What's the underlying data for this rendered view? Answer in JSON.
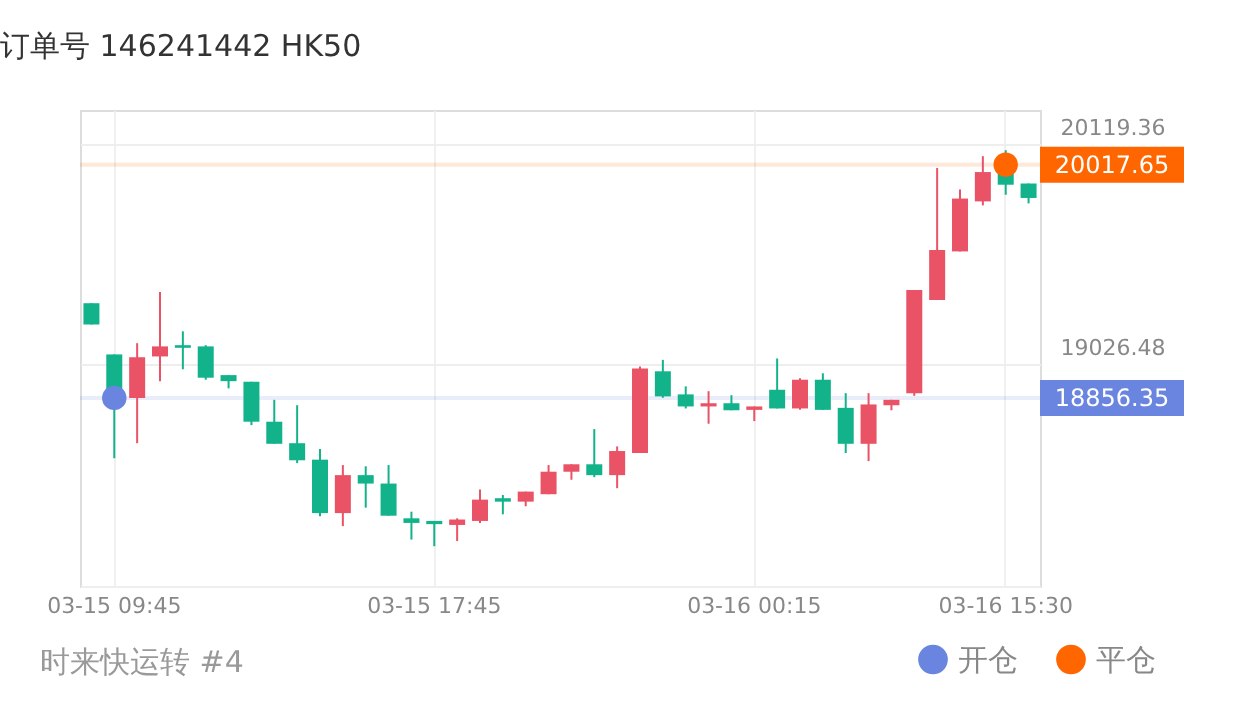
{
  "chart_data": {
    "type": "candlestick",
    "title": "订单号 146241442    HK50",
    "annotations": [
      "时来快运转 #4"
    ],
    "categories": [
      null,
      "03-15 09:45",
      null,
      null,
      null,
      null,
      null,
      null,
      null,
      null,
      null,
      null,
      null,
      null,
      null,
      "03-15 17:45",
      null,
      null,
      null,
      null,
      null,
      null,
      null,
      null,
      null,
      null,
      null,
      null,
      null,
      "03-16 00:15",
      null,
      null,
      null,
      null,
      null,
      null,
      null,
      null,
      null,
      null,
      "03-16 15:30",
      null
    ],
    "ohlc": [
      [
        19328,
        19328,
        19222,
        19222
      ],
      [
        19073,
        19073,
        18556,
        18856
      ],
      [
        18856,
        19129,
        18631,
        19059
      ],
      [
        19063,
        19384,
        18940,
        19113
      ],
      [
        19119,
        19188,
        18999,
        19106
      ],
      [
        19113,
        19119,
        18947,
        18957
      ],
      [
        18970,
        18970,
        18904,
        18940
      ],
      [
        18937,
        18937,
        18721,
        18738
      ],
      [
        18738,
        18847,
        18628,
        18628
      ],
      [
        18631,
        18820,
        18532,
        18546
      ],
      [
        18549,
        18602,
        18267,
        18283
      ],
      [
        18283,
        18522,
        18218,
        18472
      ],
      [
        18472,
        18516,
        18310,
        18430
      ],
      [
        18430,
        18522,
        18270,
        18270
      ],
      [
        18257,
        18290,
        18151,
        18234
      ],
      [
        18244,
        18244,
        18118,
        18228
      ],
      [
        18224,
        18257,
        18144,
        18251
      ],
      [
        18244,
        18400,
        18234,
        18350
      ],
      [
        18357,
        18373,
        18277,
        18340
      ],
      [
        18340,
        18390,
        18317,
        18390
      ],
      [
        18377,
        18522,
        18377,
        18489
      ],
      [
        18489,
        18526,
        18449,
        18526
      ],
      [
        18526,
        18701,
        18462,
        18472
      ],
      [
        18472,
        18615,
        18407,
        18592
      ],
      [
        18582,
        19013,
        18582,
        19003
      ],
      [
        18989,
        19046,
        18857,
        18864
      ],
      [
        18874,
        18914,
        18804,
        18814
      ],
      [
        18814,
        18890,
        18728,
        18830
      ],
      [
        18830,
        18870,
        18795,
        18795
      ],
      [
        18797,
        18814,
        18741,
        18814
      ],
      [
        18897,
        19053,
        18804,
        18804
      ],
      [
        18804,
        18954,
        18797,
        18947
      ],
      [
        18947,
        18979,
        18797,
        18797
      ],
      [
        18807,
        18880,
        18582,
        18628
      ],
      [
        18628,
        18880,
        18542,
        18824
      ],
      [
        18820,
        18847,
        18795,
        18847
      ],
      [
        18880,
        19394,
        18867,
        19394
      ],
      [
        19344,
        20001,
        19344,
        19593
      ],
      [
        19586,
        19894,
        19586,
        19849
      ],
      [
        19835,
        20060,
        19815,
        19981
      ],
      [
        19974,
        20090,
        19868,
        19918
      ],
      [
        19924,
        19924,
        19825,
        19852
      ]
    ],
    "colors": [
      "#12b38b",
      "#12b38b",
      "#ea5265",
      "#ea5265",
      "#12b38b",
      "#12b38b",
      "#12b38b",
      "#12b38b",
      "#12b38b",
      "#12b38b",
      "#12b38b",
      "#ea5265",
      "#12b38b",
      "#12b38b",
      "#12b38b",
      "#12b38b",
      "#ea5265",
      "#ea5265",
      "#12b38b",
      "#ea5265",
      "#ea5265",
      "#ea5265",
      "#12b38b",
      "#ea5265",
      "#ea5265",
      "#12b38b",
      "#12b38b",
      "#ea5265",
      "#12b38b",
      "#ea5265",
      "#12b38b",
      "#ea5265",
      "#12b38b",
      "#12b38b",
      "#ea5265",
      "#ea5265",
      "#ea5265",
      "#ea5265",
      "#ea5265",
      "#ea5265",
      "#12b38b",
      "#12b38b"
    ],
    "series": [
      {
        "name": "开仓",
        "type": "scatter",
        "color": "#6a85e0",
        "values": [
          null,
          18856.35,
          null,
          null,
          null,
          null,
          null,
          null,
          null,
          null,
          null,
          null,
          null,
          null,
          null,
          null,
          null,
          null,
          null,
          null,
          null,
          null,
          null,
          null,
          null,
          null,
          null,
          null,
          null,
          null,
          null,
          null,
          null,
          null,
          null,
          null,
          null,
          null,
          null,
          null,
          null,
          null
        ]
      },
      {
        "name": "平仓",
        "type": "scatter",
        "color": "#ff6600",
        "values": [
          null,
          null,
          null,
          null,
          null,
          null,
          null,
          null,
          null,
          null,
          null,
          null,
          null,
          null,
          null,
          null,
          null,
          null,
          null,
          null,
          null,
          null,
          null,
          null,
          null,
          null,
          null,
          null,
          null,
          null,
          null,
          null,
          null,
          null,
          null,
          null,
          null,
          null,
          null,
          null,
          20017.65,
          null
        ]
      }
    ],
    "ref_lines": [
      {
        "axis": "y",
        "value": 20017.65,
        "label": "20017.65",
        "color": "#ff6600"
      },
      {
        "axis": "y",
        "value": 18856.35,
        "label": "18856.35",
        "color": "#6a85e0"
      }
    ],
    "ylim": [
      17920,
      20290
    ],
    "yticks": [
      19026.48,
      20119.36
    ],
    "grid": true,
    "legend": "bottom right",
    "marker": "circle"
  }
}
